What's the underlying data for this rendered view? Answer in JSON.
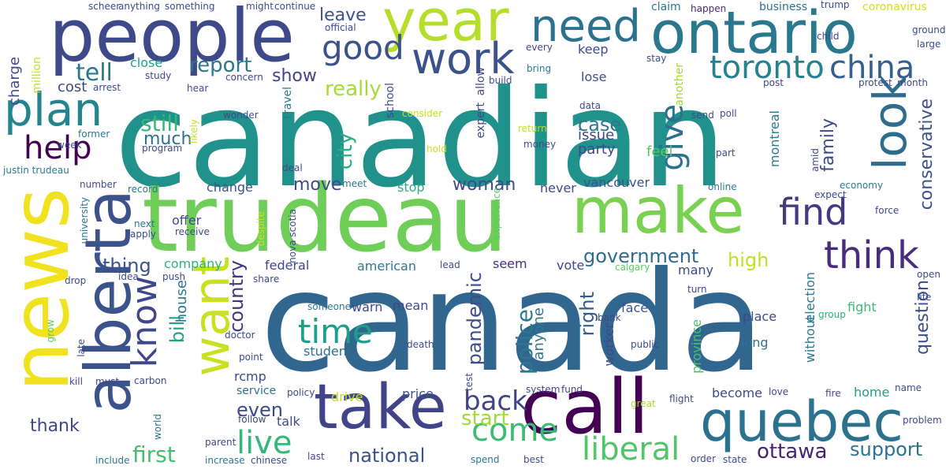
{
  "words": [
    {
      "text": "canadian",
      "color": "#21918c",
      "rot": 0
    },
    {
      "text": "canada",
      "color": "#31668e",
      "rot": 0
    },
    {
      "text": "trudeau",
      "color": "#6ece58",
      "rot": 0
    },
    {
      "text": "news",
      "color": "#f0e21f",
      "rot": -90
    },
    {
      "text": "people",
      "color": "#3e4989",
      "rot": 0
    },
    {
      "text": "year",
      "color": "#b5de2b",
      "rot": 0
    },
    {
      "text": "ontario",
      "color": "#2a788e",
      "rot": 0
    },
    {
      "text": "make",
      "color": "#7ad151",
      "rot": 0
    },
    {
      "text": "call",
      "color": "#440154",
      "rot": 0
    },
    {
      "text": "take",
      "color": "#414487",
      "rot": 0
    },
    {
      "text": "quebec",
      "color": "#2c728e",
      "rot": 0
    },
    {
      "text": "want",
      "color": "#c8e020",
      "rot": -90
    },
    {
      "text": "alberta",
      "color": "#3b528b",
      "rot": -90
    },
    {
      "text": "look",
      "color": "#2f6c8e",
      "rot": -90
    },
    {
      "text": "work",
      "color": "#3b528b",
      "rot": 0
    },
    {
      "text": "need",
      "color": "#2c728e",
      "rot": 0
    },
    {
      "text": "plan",
      "color": "#25858e",
      "rot": 0
    },
    {
      "text": "know",
      "color": "#3f4788",
      "rot": -90
    },
    {
      "text": "think",
      "color": "#472d7b",
      "rot": 0
    },
    {
      "text": "toronto",
      "color": "#26828e",
      "rot": 0
    },
    {
      "text": "china",
      "color": "#355f8d",
      "rot": 0
    },
    {
      "text": "find",
      "color": "#443a83",
      "rot": 0
    },
    {
      "text": "liberal",
      "color": "#52c569",
      "rot": 0
    },
    {
      "text": "good",
      "color": "#3b528b",
      "rot": 0
    },
    {
      "text": "help",
      "color": "#440154",
      "rot": 0
    },
    {
      "text": "time",
      "color": "#1f9e89",
      "rot": 0
    },
    {
      "text": "live",
      "color": "#35b779",
      "rot": 0
    },
    {
      "text": "come",
      "color": "#3bbb75",
      "rot": 0
    },
    {
      "text": "back",
      "color": "#414487",
      "rot": 0
    },
    {
      "text": "give",
      "color": "#2d708e",
      "rot": -90
    },
    {
      "text": "tell",
      "color": "#2a788e",
      "rot": 0
    },
    {
      "text": "report",
      "color": "#2a788e",
      "rot": 0
    },
    {
      "text": "really",
      "color": "#a5db36",
      "rot": 0
    },
    {
      "text": "still",
      "color": "#35b779",
      "rot": 0
    },
    {
      "text": "much",
      "color": "#2c728e",
      "rot": 0
    },
    {
      "text": "case",
      "color": "#2a788e",
      "rot": 0
    },
    {
      "text": "government",
      "color": "#306a8e",
      "rot": 0
    },
    {
      "text": "ottawa",
      "color": "#482374",
      "rot": 0
    },
    {
      "text": "support",
      "color": "#2c728e",
      "rot": 0
    },
    {
      "text": "national",
      "color": "#3b528b",
      "rot": 0
    },
    {
      "text": "first",
      "color": "#44bf70",
      "rot": 0
    },
    {
      "text": "start",
      "color": "#a2da37",
      "rot": 0
    },
    {
      "text": "even",
      "color": "#3e4989",
      "rot": 0
    },
    {
      "text": "thank",
      "color": "#404688",
      "rot": 0
    },
    {
      "text": "thing",
      "color": "#3b528b",
      "rot": 0
    },
    {
      "text": "country",
      "color": "#453581",
      "rot": -90
    },
    {
      "text": "city",
      "color": "#27ad81",
      "rot": -90
    },
    {
      "text": "bill",
      "color": "#1fa287",
      "rot": -90
    },
    {
      "text": "pandemic",
      "color": "#3e4c8a",
      "rot": -90
    },
    {
      "text": "police",
      "color": "#2a788e",
      "rot": -90
    },
    {
      "text": "right",
      "color": "#365c8d",
      "rot": -90
    },
    {
      "text": "family",
      "color": "#3e4989",
      "rot": -90
    },
    {
      "text": "conservative",
      "color": "#3b528b",
      "rot": -90
    },
    {
      "text": "question",
      "color": "#3d4e8a",
      "rot": -90
    },
    {
      "text": "high",
      "color": "#c0df25",
      "rot": 0
    },
    {
      "text": "move",
      "color": "#3e4989",
      "rot": 0
    },
    {
      "text": "woman",
      "color": "#3e4989",
      "rot": 0
    },
    {
      "text": "leave",
      "color": "#3b528b",
      "rot": 0
    },
    {
      "text": "show",
      "color": "#414487",
      "rot": 0
    },
    {
      "text": "charge",
      "color": "#3e4989",
      "rot": -90
    },
    {
      "text": "cost",
      "color": "#3e4989",
      "rot": 0
    },
    {
      "text": "close",
      "color": "#1fa088",
      "rot": 0
    },
    {
      "text": "keep",
      "color": "#3d4e8a",
      "rot": 0
    },
    {
      "text": "lose",
      "color": "#3d4e8a",
      "rot": 0
    },
    {
      "text": "claim",
      "color": "#2a788e",
      "rot": 0
    },
    {
      "text": "business",
      "color": "#2d708e",
      "rot": 0
    },
    {
      "text": "coronavirus",
      "color": "#d0e11c",
      "rot": 0
    },
    {
      "text": "happen",
      "color": "#482878",
      "rot": 0
    },
    {
      "text": "trump",
      "color": "#3e4989",
      "rot": 0
    },
    {
      "text": "issue",
      "color": "#3e4989",
      "rot": 0
    },
    {
      "text": "party",
      "color": "#3e4989",
      "rot": 0
    },
    {
      "text": "feel",
      "color": "#58c765",
      "rot": 0
    },
    {
      "text": "change",
      "color": "#3b528b",
      "rot": 0
    },
    {
      "text": "stop",
      "color": "#27ad81",
      "rot": 0
    },
    {
      "text": "never",
      "color": "#3e4989",
      "rot": 0
    },
    {
      "text": "vancouver",
      "color": "#3b528b",
      "rot": 0
    },
    {
      "text": "offer",
      "color": "#3e4989",
      "rot": 0
    },
    {
      "text": "company",
      "color": "#2eb37c",
      "rot": 0
    },
    {
      "text": "federal",
      "color": "#3e4989",
      "rot": 0
    },
    {
      "text": "american",
      "color": "#287c8e",
      "rot": 0
    },
    {
      "text": "seem",
      "color": "#46337f",
      "rot": 0
    },
    {
      "text": "vote",
      "color": "#3e4989",
      "rot": 0
    },
    {
      "text": "many",
      "color": "#3e4989",
      "rot": 0
    },
    {
      "text": "face",
      "color": "#3b528b",
      "rot": 0
    },
    {
      "text": "place",
      "color": "#3e4989",
      "rot": 0
    },
    {
      "text": "long",
      "color": "#2c728e",
      "rot": 0
    },
    {
      "text": "warn",
      "color": "#3e4989",
      "rot": 0
    },
    {
      "text": "mean",
      "color": "#3e4989",
      "rot": 0
    },
    {
      "text": "student",
      "color": "#2c728e",
      "rot": 0
    },
    {
      "text": "rcmp",
      "color": "#3e4989",
      "rot": 0
    },
    {
      "text": "fight",
      "color": "#3bbb75",
      "rot": 0
    },
    {
      "text": "become",
      "color": "#3e4989",
      "rot": 0
    },
    {
      "text": "home",
      "color": "#1fa088",
      "rot": 0
    },
    {
      "text": "price",
      "color": "#3b528b",
      "rot": 0
    },
    {
      "text": "drive",
      "color": "#c2df23",
      "rot": 0
    },
    {
      "text": "talk",
      "color": "#3e4989",
      "rot": 0
    },
    {
      "text": "service",
      "color": "#2c728e",
      "rot": 0
    },
    {
      "text": "policy",
      "color": "#3e4989",
      "rot": 0
    },
    {
      "text": "house",
      "color": "#2a788e",
      "rot": -90
    },
    {
      "text": "anyone",
      "color": "#2a788e",
      "rot": -90
    },
    {
      "text": "worker",
      "color": "#3e4989",
      "rot": -90
    },
    {
      "text": "province",
      "color": "#4ac16d",
      "rot": -90
    },
    {
      "text": "without",
      "color": "#2a788e",
      "rot": -90
    },
    {
      "text": "election",
      "color": "#2a788e",
      "rot": -90
    },
    {
      "text": "montreal",
      "color": "#2a788e",
      "rot": -90
    },
    {
      "text": "million",
      "color": "#c8e020",
      "rot": -90
    },
    {
      "text": "another",
      "color": "#a0da39",
      "rot": -90
    },
    {
      "text": "expert",
      "color": "#3e4989",
      "rot": -90
    },
    {
      "text": "allow",
      "color": "#3e4989",
      "rot": -90
    },
    {
      "text": "school",
      "color": "#3e4989",
      "rot": -90
    },
    {
      "text": "travel",
      "color": "#2a788e",
      "rot": -90
    },
    {
      "text": "month",
      "color": "#3e4989",
      "rot": 0
    },
    {
      "text": "protest",
      "color": "#3e4989",
      "rot": 0
    },
    {
      "text": "post",
      "color": "#3e4989",
      "rot": 0
    },
    {
      "text": "poll",
      "color": "#3e4989",
      "rot": 0
    },
    {
      "text": "send",
      "color": "#3e4989",
      "rot": 0
    },
    {
      "text": "part",
      "color": "#3e4989",
      "rot": 0
    },
    {
      "text": "online",
      "color": "#2a788e",
      "rot": 0
    },
    {
      "text": "expect",
      "color": "#3e4989",
      "rot": 0
    },
    {
      "text": "economy",
      "color": "#2a788e",
      "rot": 0
    },
    {
      "text": "force",
      "color": "#3e4989",
      "rot": 0
    },
    {
      "text": "open",
      "color": "#3e4989",
      "rot": 0
    },
    {
      "text": "life",
      "color": "#3e4989",
      "rot": 0
    },
    {
      "text": "turn",
      "color": "#3e4989",
      "rot": 0
    },
    {
      "text": "group",
      "color": "#27ad81",
      "rot": 0
    },
    {
      "text": "bank",
      "color": "#3e4989",
      "rot": 0
    },
    {
      "text": "public",
      "color": "#3e4989",
      "rot": 0
    },
    {
      "text": "calgary",
      "color": "#5ec962",
      "rot": 0
    },
    {
      "text": "love",
      "color": "#3e4989",
      "rot": 0
    },
    {
      "text": "name",
      "color": "#3e4989",
      "rot": 0
    },
    {
      "text": "fire",
      "color": "#3e4989",
      "rot": 0
    },
    {
      "text": "flight",
      "color": "#3e4989",
      "rot": 0
    },
    {
      "text": "great",
      "color": "#a5db36",
      "rot": 0
    },
    {
      "text": "problem",
      "color": "#3e4989",
      "rot": 0
    },
    {
      "text": "order",
      "color": "#3e4989",
      "rot": 0
    },
    {
      "text": "state",
      "color": "#3e4989",
      "rot": 0
    },
    {
      "text": "best",
      "color": "#3e4989",
      "rot": 0
    },
    {
      "text": "spend",
      "color": "#2a788e",
      "rot": 0
    },
    {
      "text": "system",
      "color": "#3e4989",
      "rot": 0
    },
    {
      "text": "fund",
      "color": "#3e4989",
      "rot": 0
    },
    {
      "text": "death",
      "color": "#3e4989",
      "rot": 0
    },
    {
      "text": "lead",
      "color": "#3e4989",
      "rot": 0
    },
    {
      "text": "last",
      "color": "#3e4989",
      "rot": 0
    },
    {
      "text": "chinese",
      "color": "#3e4989",
      "rot": 0
    },
    {
      "text": "increase",
      "color": "#2a788e",
      "rot": 0
    },
    {
      "text": "parent",
      "color": "#3e4989",
      "rot": 0
    },
    {
      "text": "include",
      "color": "#2a788e",
      "rot": 0
    },
    {
      "text": "follow",
      "color": "#3e4989",
      "rot": 0
    },
    {
      "text": "share",
      "color": "#3e4989",
      "rot": 0
    },
    {
      "text": "someone",
      "color": "#2a788e",
      "rot": 0
    },
    {
      "text": "point",
      "color": "#3e4989",
      "rot": 0
    },
    {
      "text": "doctor",
      "color": "#3e4989",
      "rot": 0
    },
    {
      "text": "idea",
      "color": "#3e4989",
      "rot": 0
    },
    {
      "text": "push",
      "color": "#3e4989",
      "rot": 0
    },
    {
      "text": "kill",
      "color": "#3e4989",
      "rot": 0
    },
    {
      "text": "must",
      "color": "#3e4989",
      "rot": 0
    },
    {
      "text": "carbon",
      "color": "#3e4989",
      "rot": 0
    },
    {
      "text": "drop",
      "color": "#3e4989",
      "rot": 0
    },
    {
      "text": "apply",
      "color": "#3e4989",
      "rot": 0
    },
    {
      "text": "receive",
      "color": "#3e4989",
      "rot": 0
    },
    {
      "text": "next",
      "color": "#2a788e",
      "rot": 0
    },
    {
      "text": "number",
      "color": "#3e4989",
      "rot": 0
    },
    {
      "text": "record",
      "color": "#2a788e",
      "rot": 0
    },
    {
      "text": "meet",
      "color": "#2a788e",
      "rot": 0
    },
    {
      "text": "deal",
      "color": "#3e4989",
      "rot": 0
    },
    {
      "text": "program",
      "color": "#3e4989",
      "rot": 0
    },
    {
      "text": "money",
      "color": "#3e4989",
      "rot": 0
    },
    {
      "text": "return",
      "color": "#c2df23",
      "rot": 0
    },
    {
      "text": "hold",
      "color": "#c8e020",
      "rot": 0
    },
    {
      "text": "consider",
      "color": "#c8e020",
      "rot": 0
    },
    {
      "text": "data",
      "color": "#3e4989",
      "rot": 0
    },
    {
      "text": "stay",
      "color": "#3e4989",
      "rot": 0
    },
    {
      "text": "bring",
      "color": "#2a788e",
      "rot": 0
    },
    {
      "text": "every",
      "color": "#3e4989",
      "rot": 0
    },
    {
      "text": "build",
      "color": "#3e4989",
      "rot": 0
    },
    {
      "text": "concern",
      "color": "#3e4989",
      "rot": 0
    },
    {
      "text": "hear",
      "color": "#3e4989",
      "rot": 0
    },
    {
      "text": "wonder",
      "color": "#3e4989",
      "rot": 0
    },
    {
      "text": "former",
      "color": "#2a788e",
      "rot": 0
    },
    {
      "text": "week",
      "color": "#3e4989",
      "rot": 0
    },
    {
      "text": "arrest",
      "color": "#3e4989",
      "rot": 0
    },
    {
      "text": "study",
      "color": "#3e4989",
      "rot": 0
    },
    {
      "text": "justin trudeau",
      "color": "#2a788e",
      "rot": 0
    },
    {
      "text": "scheer",
      "color": "#3e4989",
      "rot": 0
    },
    {
      "text": "anything",
      "color": "#3e4989",
      "rot": 0
    },
    {
      "text": "something",
      "color": "#3e4989",
      "rot": 0
    },
    {
      "text": "might",
      "color": "#3e4989",
      "rot": 0
    },
    {
      "text": "continue",
      "color": "#3e4989",
      "rot": 0
    },
    {
      "text": "official",
      "color": "#3e4989",
      "rot": 0
    },
    {
      "text": "child",
      "color": "#3e4989",
      "rot": 0
    },
    {
      "text": "large",
      "color": "#3e4989",
      "rot": 0
    },
    {
      "text": "ground",
      "color": "#3e4989",
      "rot": 0
    },
    {
      "text": "nova scotia",
      "color": "#3e4989",
      "rot": -90
    },
    {
      "text": "university",
      "color": "#2a788e",
      "rot": -90
    },
    {
      "text": "experience",
      "color": "#5ec962",
      "rot": -90
    },
    {
      "text": "despite",
      "color": "#c8e020",
      "rot": -90
    },
    {
      "text": "likely",
      "color": "#c8e020",
      "rot": -90
    },
    {
      "text": "world",
      "color": "#2a788e",
      "rot": -90
    },
    {
      "text": "grow",
      "color": "#5ec962",
      "rot": -90
    },
    {
      "text": "late",
      "color": "#3e4989",
      "rot": -90
    },
    {
      "text": "amid",
      "color": "#3e4989",
      "rot": -90
    },
    {
      "text": "test",
      "color": "#3e4989",
      "rot": -90
    }
  ]
}
